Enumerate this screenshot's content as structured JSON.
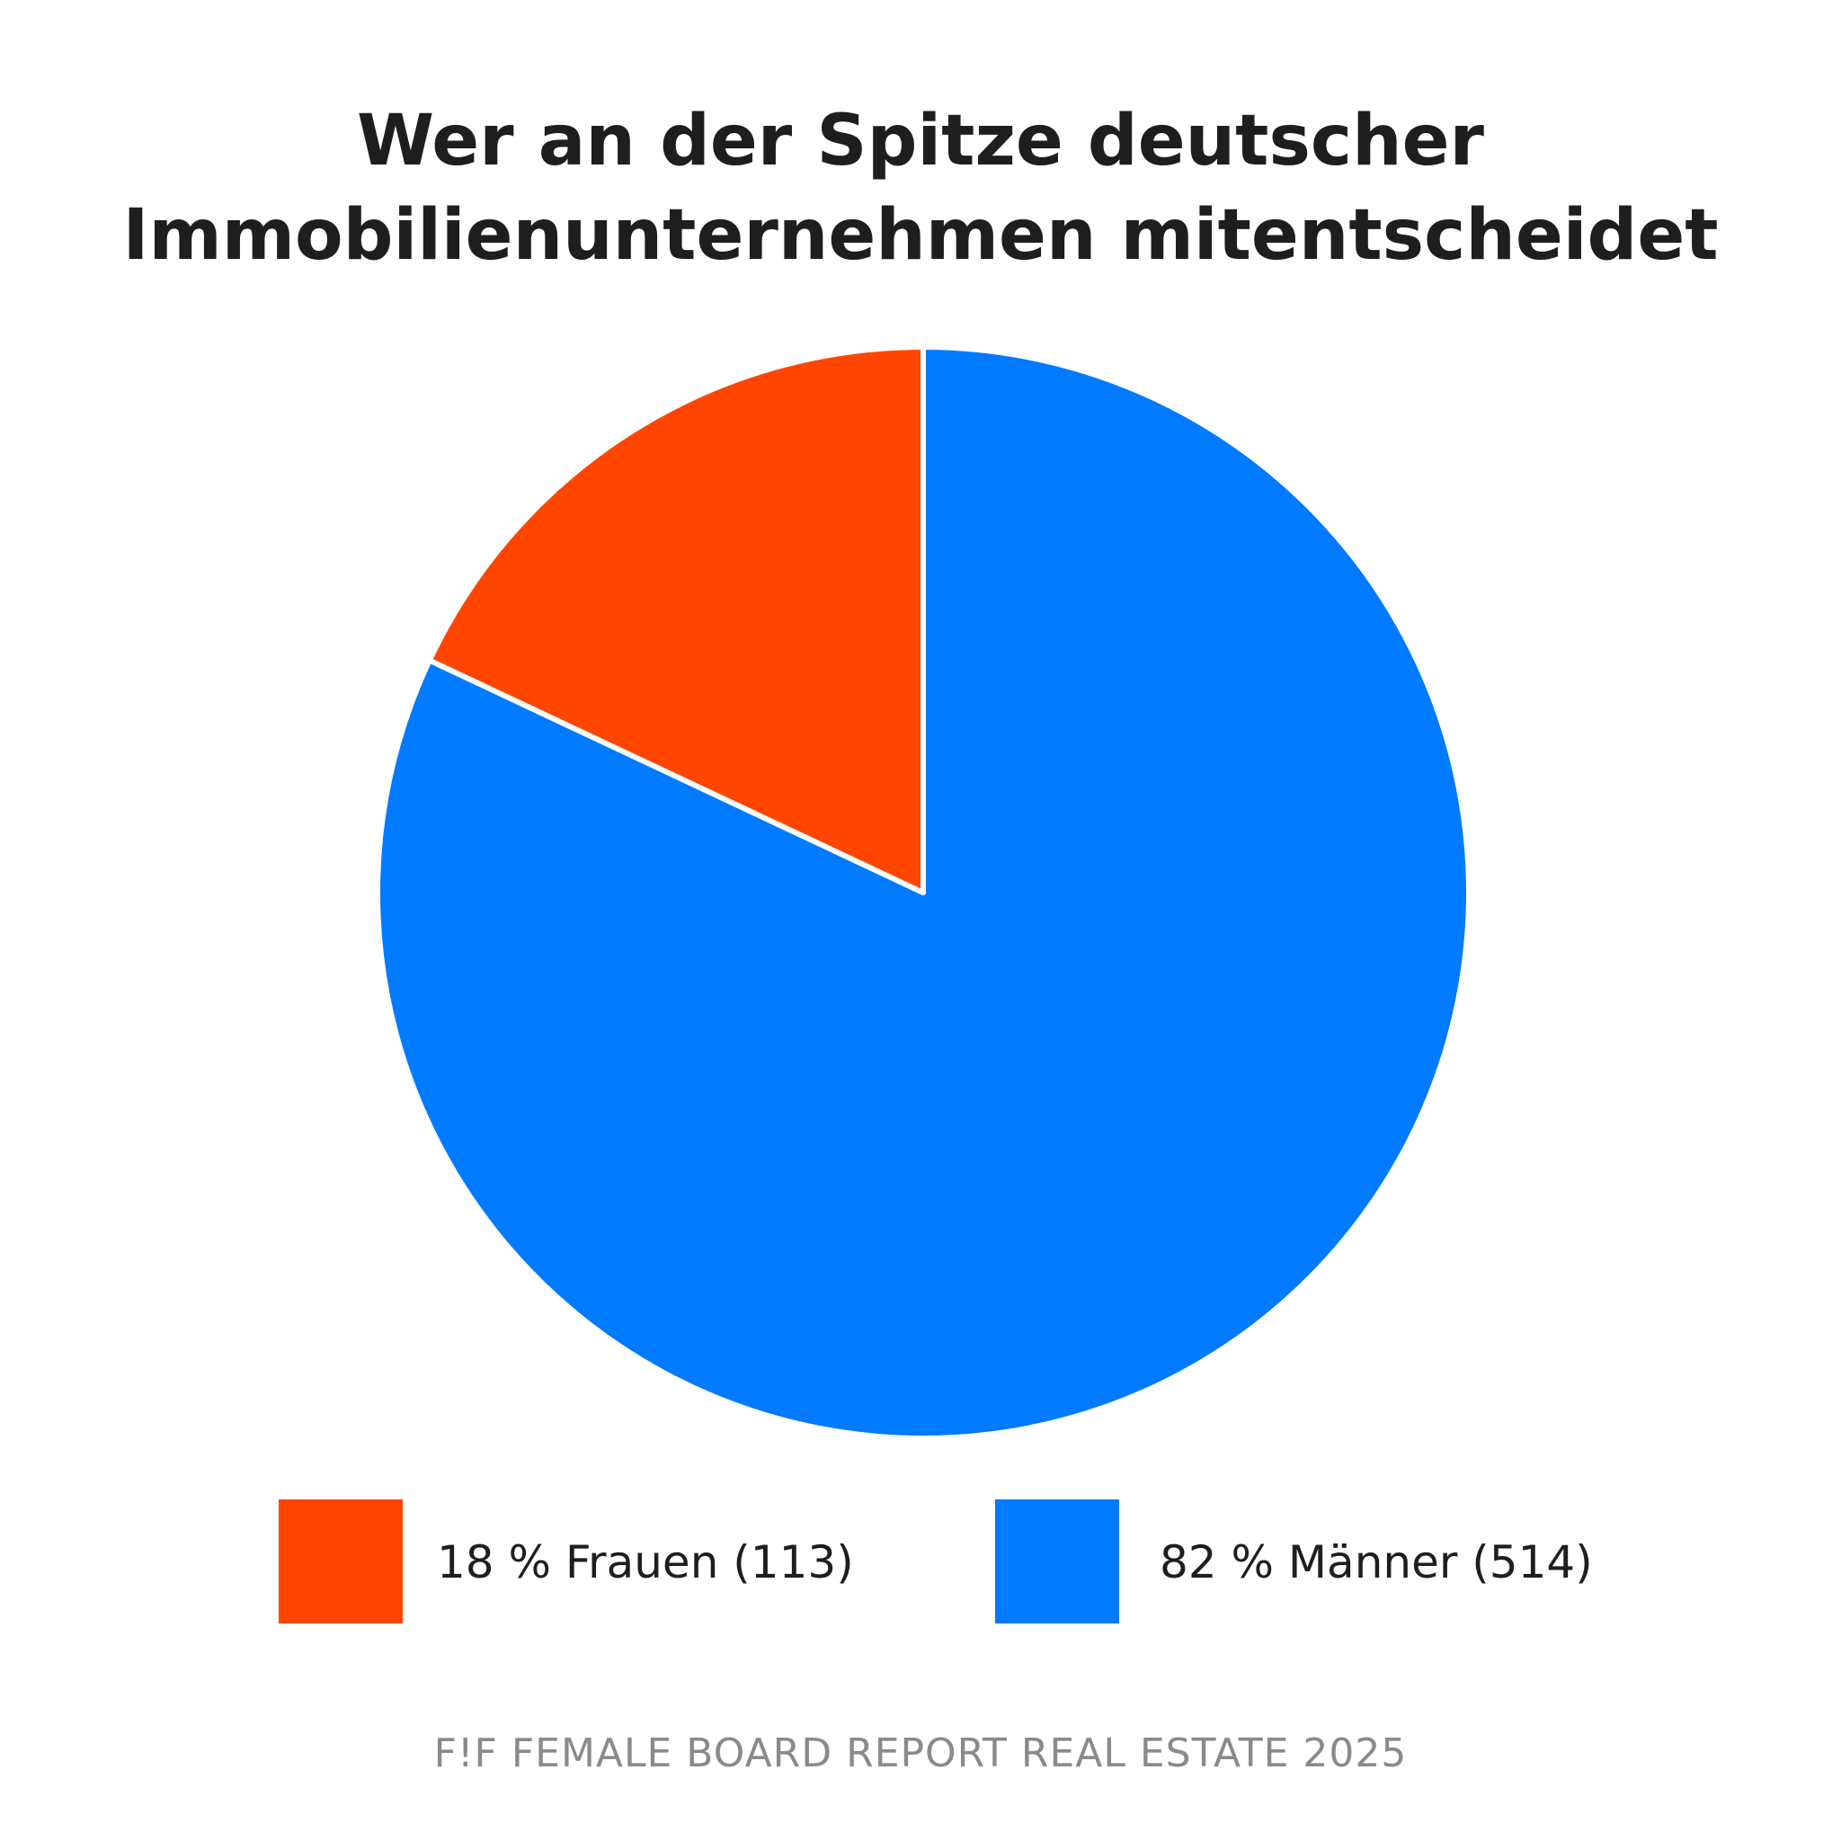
{
  "title": {
    "line1": "Wer an der Spitze deutscher",
    "line2": "Immobilienunternehmen mitentscheidet"
  },
  "chart_data": {
    "type": "pie",
    "start": "12 o'clock, clockwise",
    "slices": [
      {
        "label": "82 % Männer (514)",
        "name": "Männer",
        "percent": 82,
        "count": 514,
        "color": "#007aff"
      },
      {
        "label": "18 % Frauen (113)",
        "name": "Frauen",
        "percent": 18,
        "count": 113,
        "color": "#ff4500"
      }
    ],
    "legend": [
      {
        "label": "18 % Frauen (113)",
        "color": "#ff4500"
      },
      {
        "label": "82 % Männer (514)",
        "color": "#007aff"
      }
    ],
    "legend_placement": "bottom"
  },
  "footer": "F!F FEMALE BOARD REPORT REAL ESTATE 2025"
}
